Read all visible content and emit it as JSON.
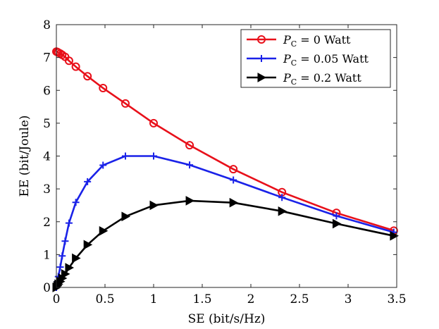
{
  "chart_data": {
    "type": "line",
    "xlabel": "SE (bit/s/Hz)",
    "ylabel": "EE (bit/Joule)",
    "xlim": [
      0,
      3.5
    ],
    "ylim": [
      0,
      8
    ],
    "x_ticks": [
      "0",
      "0.5",
      "1",
      "1.5",
      "2",
      "2.5",
      "3",
      "3.5"
    ],
    "y_ticks": [
      "0",
      "1",
      "2",
      "3",
      "4",
      "5",
      "6",
      "7",
      "8"
    ],
    "grid": false,
    "legend_position": "top-right",
    "series": [
      {
        "name": "P_C = 0 Watt",
        "legend": {
          "symbol": "P",
          "sub": "C",
          "rest": " = 0 Watt"
        },
        "color": "#e8101a",
        "marker": "circle",
        "x": [
          0.0,
          0.01,
          0.02,
          0.04,
          0.06,
          0.09,
          0.13,
          0.2,
          0.32,
          0.48,
          0.71,
          1.0,
          1.37,
          1.82,
          2.32,
          2.88,
          3.47
        ],
        "y": [
          7.18,
          7.17,
          7.15,
          7.12,
          7.08,
          7.02,
          6.9,
          6.72,
          6.43,
          6.07,
          5.6,
          5.0,
          4.33,
          3.6,
          2.9,
          2.27,
          1.73
        ]
      },
      {
        "name": "P_C = 0.05 Watt",
        "legend": {
          "symbol": "P",
          "sub": "C",
          "rest": " = 0.05 Watt"
        },
        "color": "#1a22e8",
        "marker": "plus",
        "x": [
          0.0,
          0.01,
          0.02,
          0.04,
          0.06,
          0.09,
          0.13,
          0.2,
          0.32,
          0.48,
          0.71,
          1.0,
          1.37,
          1.82,
          2.32,
          2.88,
          3.47
        ],
        "y": [
          0.0,
          0.17,
          0.33,
          0.62,
          0.96,
          1.41,
          1.96,
          2.59,
          3.22,
          3.72,
          4.0,
          4.0,
          3.73,
          3.27,
          2.74,
          2.18,
          1.68
        ]
      },
      {
        "name": "P_C = 0.2 Watt",
        "legend": {
          "symbol": "P",
          "sub": "C",
          "rest": " = 0.2 Watt"
        },
        "color": "#000000",
        "marker": "triangle-right",
        "x": [
          0.0,
          0.01,
          0.02,
          0.04,
          0.06,
          0.09,
          0.13,
          0.2,
          0.32,
          0.48,
          0.71,
          1.0,
          1.37,
          1.82,
          2.32,
          2.88,
          3.47
        ],
        "y": [
          0.0,
          0.05,
          0.1,
          0.18,
          0.28,
          0.41,
          0.6,
          0.89,
          1.3,
          1.72,
          2.16,
          2.5,
          2.64,
          2.58,
          2.32,
          1.94,
          1.57
        ]
      }
    ]
  }
}
